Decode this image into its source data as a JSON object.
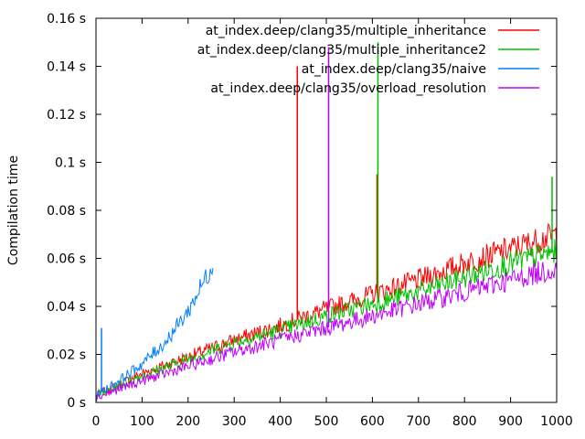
{
  "chart_data": {
    "type": "line",
    "title": "",
    "xlabel": "",
    "ylabel": "Compilation time",
    "xlim": [
      0,
      1000
    ],
    "ylim": [
      0,
      0.16
    ],
    "x_ticks": [
      0,
      100,
      200,
      300,
      400,
      500,
      600,
      700,
      800,
      900,
      1000
    ],
    "y_ticks": [
      0,
      0.02,
      0.04,
      0.06,
      0.08,
      0.1,
      0.12,
      0.14,
      0.16
    ],
    "y_tick_labels": [
      "0 s",
      "0.02 s",
      "0.04 s",
      "0.06 s",
      "0.08 s",
      "0.1 s",
      "0.12 s",
      "0.14 s",
      "0.16 s"
    ],
    "grid": false,
    "legend_position": "top-right",
    "series": [
      {
        "name": "at_index.deep/clang35/multiple_inheritance",
        "color": "#ff0000",
        "x": [
          0,
          100,
          200,
          300,
          400,
          500,
          600,
          700,
          800,
          900,
          1000
        ],
        "y": [
          0.003,
          0.012,
          0.019,
          0.026,
          0.032,
          0.039,
          0.045,
          0.051,
          0.058,
          0.064,
          0.07
        ],
        "spikes": [
          {
            "x": 437,
            "y": 0.14
          },
          {
            "x": 610,
            "y": 0.095
          }
        ]
      },
      {
        "name": "at_index.deep/clang35/multiple_inheritance2",
        "color": "#00c000",
        "x": [
          0,
          100,
          200,
          300,
          400,
          500,
          600,
          700,
          800,
          900,
          1000
        ],
        "y": [
          0.003,
          0.011,
          0.018,
          0.025,
          0.03,
          0.036,
          0.041,
          0.046,
          0.052,
          0.058,
          0.063
        ],
        "spikes": [
          {
            "x": 612,
            "y": 0.15
          },
          {
            "x": 990,
            "y": 0.094
          }
        ]
      },
      {
        "name": "at_index.deep/clang35/naive",
        "color": "#0080ff",
        "x": [
          0,
          50,
          100,
          150,
          200,
          255
        ],
        "y": [
          0.003,
          0.009,
          0.016,
          0.025,
          0.038,
          0.058
        ],
        "spikes": [
          {
            "x": 12,
            "y": 0.031
          }
        ]
      },
      {
        "name": "at_index.deep/clang35/overload_resolution",
        "color": "#c000ff",
        "x": [
          0,
          100,
          200,
          300,
          400,
          500,
          600,
          700,
          800,
          900,
          1000
        ],
        "y": [
          0.002,
          0.009,
          0.015,
          0.021,
          0.026,
          0.031,
          0.036,
          0.041,
          0.046,
          0.051,
          0.056
        ],
        "spikes": [
          {
            "x": 505,
            "y": 0.148
          }
        ]
      }
    ]
  }
}
